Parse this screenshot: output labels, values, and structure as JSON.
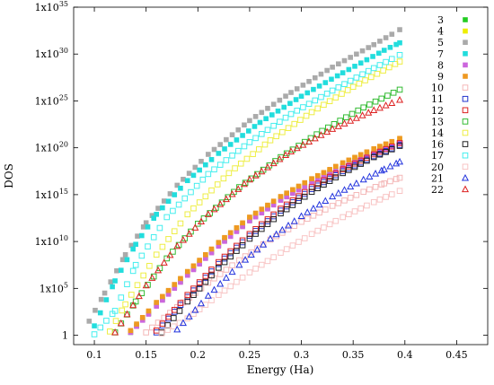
{
  "chart_data": {
    "type": "scatter",
    "title": "",
    "xlabel": "Energy (Ha)",
    "ylabel": "DOS",
    "x_ticks": [
      "0.1",
      "0.15",
      "0.2",
      "0.25",
      "0.3",
      "0.35",
      "0.4",
      "0.45"
    ],
    "x_tick_values": [
      0.1,
      0.15,
      0.2,
      0.25,
      0.3,
      0.35,
      0.4,
      0.45
    ],
    "y_ticks": [
      "1",
      "1x10",
      "1x10",
      "1x10",
      "1x10",
      "1x10",
      "1x10",
      "1x10"
    ],
    "y_tick_exponents": [
      "",
      "5",
      "10",
      "15",
      "20",
      "25",
      "30",
      "35"
    ],
    "y_tick_values_log10": [
      0,
      5,
      10,
      15,
      20,
      25,
      30,
      35
    ],
    "xlim": [
      0.08,
      0.48
    ],
    "ylim_log10": [
      -1,
      35
    ],
    "y_scale": "log",
    "grid": false,
    "legend_position": "right-inside",
    "series": [
      {
        "name": "3",
        "marker": "filled-square",
        "color": "#22cc22",
        "x": [
          0.135,
          0.16,
          0.19,
          0.22,
          0.25,
          0.28,
          0.31,
          0.34,
          0.37,
          0.395
        ],
        "y_log10": [
          0.3,
          3.2,
          6.5,
          9.6,
          12.3,
          14.5,
          16.4,
          18.1,
          19.5,
          20.6
        ]
      },
      {
        "name": "4",
        "marker": "filled-square",
        "color": "#eeee00",
        "x": [
          0.135,
          0.16,
          0.19,
          0.22,
          0.25,
          0.28,
          0.31,
          0.34,
          0.37,
          0.395
        ],
        "y_log10": [
          0.4,
          3.4,
          6.7,
          9.8,
          12.5,
          14.7,
          16.6,
          18.3,
          19.8,
          20.9
        ]
      },
      {
        "name": "5",
        "marker": "filled-square",
        "color": "#aaaaaa",
        "x": [
          0.095,
          0.11,
          0.13,
          0.15,
          0.18,
          0.21,
          0.25,
          0.29,
          0.33,
          0.37,
          0.395
        ],
        "y_log10": [
          1.5,
          4.5,
          8.6,
          12.0,
          16.0,
          19.3,
          22.9,
          25.9,
          28.6,
          31.0,
          32.6
        ]
      },
      {
        "name": "7",
        "marker": "filled-square",
        "color": "#22dddd",
        "x": [
          0.1,
          0.12,
          0.14,
          0.16,
          0.19,
          0.22,
          0.26,
          0.3,
          0.34,
          0.38,
          0.395
        ],
        "y_log10": [
          1.0,
          5.8,
          9.7,
          12.9,
          16.5,
          19.4,
          22.7,
          25.5,
          28.0,
          30.4,
          31.2
        ]
      },
      {
        "name": "8",
        "marker": "filled-square",
        "color": "#cc66dd",
        "x": [
          0.135,
          0.16,
          0.19,
          0.22,
          0.25,
          0.28,
          0.31,
          0.34,
          0.37,
          0.395
        ],
        "y_log10": [
          0.3,
          3.1,
          6.4,
          9.5,
          12.2,
          14.4,
          16.3,
          18.0,
          19.4,
          20.5
        ]
      },
      {
        "name": "9",
        "marker": "filled-square",
        "color": "#ee9922",
        "x": [
          0.135,
          0.16,
          0.19,
          0.22,
          0.25,
          0.28,
          0.31,
          0.34,
          0.37,
          0.395
        ],
        "y_log10": [
          0.5,
          3.5,
          6.8,
          9.9,
          12.6,
          14.8,
          16.7,
          18.4,
          19.9,
          21.0
        ]
      },
      {
        "name": "10",
        "marker": "open-square",
        "color": "#f4b8b8",
        "x": [
          0.15,
          0.18,
          0.21,
          0.24,
          0.27,
          0.3,
          0.33,
          0.36,
          0.38,
          0.395
        ],
        "y_log10": [
          0.3,
          3.0,
          5.6,
          8.0,
          10.2,
          12.1,
          13.8,
          15.3,
          16.2,
          16.8
        ]
      },
      {
        "name": "11",
        "marker": "open-square",
        "color": "#2233cc",
        "x": [
          0.16,
          0.19,
          0.22,
          0.25,
          0.28,
          0.31,
          0.34,
          0.37,
          0.395
        ],
        "y_log10": [
          0.3,
          4.1,
          7.6,
          10.6,
          13.3,
          15.6,
          17.5,
          19.1,
          20.3
        ]
      },
      {
        "name": "12",
        "marker": "open-square",
        "color": "#dd2222",
        "x": [
          0.16,
          0.19,
          0.22,
          0.25,
          0.28,
          0.31,
          0.34,
          0.37,
          0.395
        ],
        "y_log10": [
          0.5,
          4.3,
          7.8,
          10.8,
          13.5,
          15.8,
          17.7,
          19.3,
          20.5
        ]
      },
      {
        "name": "13",
        "marker": "open-square",
        "color": "#33bb33",
        "x": [
          0.12,
          0.14,
          0.17,
          0.2,
          0.24,
          0.28,
          0.32,
          0.36,
          0.395
        ],
        "y_log10": [
          0.3,
          3.6,
          8.2,
          11.9,
          15.8,
          19.0,
          21.8,
          24.3,
          26.2
        ]
      },
      {
        "name": "14",
        "marker": "open-square",
        "color": "#eeee44",
        "x": [
          0.115,
          0.13,
          0.16,
          0.19,
          0.23,
          0.27,
          0.31,
          0.35,
          0.395
        ],
        "y_log10": [
          0.4,
          3.3,
          8.6,
          12.9,
          17.3,
          20.8,
          23.8,
          26.5,
          29.2
        ]
      },
      {
        "name": "16",
        "marker": "open-square",
        "color": "#222222",
        "x": [
          0.165,
          0.19,
          0.22,
          0.25,
          0.28,
          0.31,
          0.34,
          0.37,
          0.395
        ],
        "y_log10": [
          0.3,
          3.6,
          7.2,
          10.3,
          13.0,
          15.3,
          17.3,
          19.0,
          20.2
        ]
      },
      {
        "name": "17",
        "marker": "open-square",
        "color": "#44eeee",
        "x": [
          0.1,
          0.12,
          0.14,
          0.17,
          0.21,
          0.25,
          0.29,
          0.33,
          0.37,
          0.395
        ],
        "y_log10": [
          0.1,
          2.6,
          7.5,
          12.6,
          17.2,
          20.6,
          23.6,
          26.1,
          28.5,
          29.9
        ]
      },
      {
        "name": "20",
        "marker": "open-square",
        "color": "#f8c4c4",
        "x": [
          0.165,
          0.19,
          0.22,
          0.25,
          0.28,
          0.31,
          0.34,
          0.37,
          0.395
        ],
        "y_log10": [
          0.2,
          1.8,
          4.3,
          6.7,
          8.8,
          10.8,
          12.6,
          14.2,
          15.4
        ]
      },
      {
        "name": "21",
        "marker": "open-triangle",
        "color": "#2233dd",
        "x": [
          0.18,
          0.21,
          0.24,
          0.27,
          0.3,
          0.33,
          0.36,
          0.38,
          0.395
        ],
        "y_log10": [
          0.6,
          4.2,
          7.5,
          10.3,
          12.7,
          14.8,
          16.6,
          17.7,
          18.5
        ]
      },
      {
        "name": "22",
        "marker": "open-triangle",
        "color": "#dd2222",
        "x": [
          0.12,
          0.15,
          0.18,
          0.21,
          0.25,
          0.29,
          0.33,
          0.37,
          0.395
        ],
        "y_log10": [
          0.3,
          5.3,
          9.5,
          12.9,
          16.6,
          19.6,
          22.0,
          24.0,
          25.1
        ]
      }
    ]
  }
}
